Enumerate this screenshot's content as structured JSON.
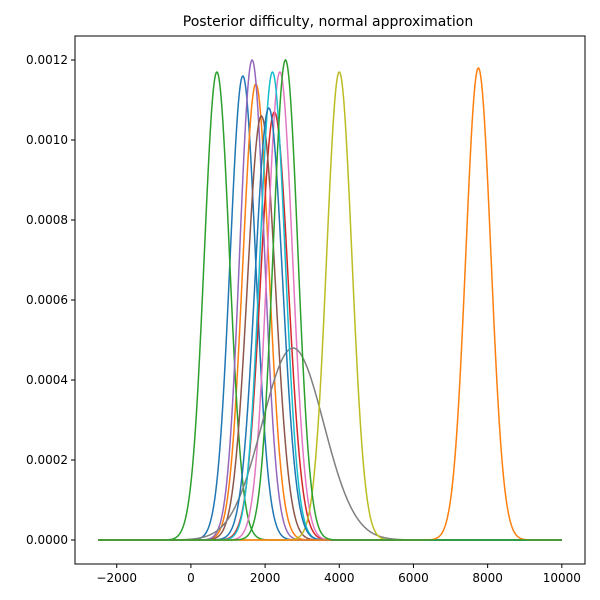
{
  "chart_data": {
    "type": "line",
    "title": "Posterior difficulty, normal approximation",
    "xlabel": "",
    "ylabel": "",
    "xlim": [
      -3125,
      10625
    ],
    "ylim": [
      -6e-05,
      0.00126
    ],
    "x_range": [
      -2500,
      10000
    ],
    "xticks": [
      -2000,
      0,
      2000,
      4000,
      6000,
      8000,
      10000
    ],
    "xtick_labels": [
      "−2000",
      "0",
      "2000",
      "4000",
      "6000",
      "8000",
      "10000"
    ],
    "yticks": [
      0.0,
      0.0002,
      0.0004,
      0.0006,
      0.0008,
      0.001,
      0.0012
    ],
    "ytick_labels": [
      "0.0000",
      "0.0002",
      "0.0004",
      "0.0006",
      "0.0008",
      "0.0010",
      "0.0012"
    ],
    "grid": false,
    "legend": "none",
    "series": [
      {
        "mean": 1400,
        "peak": 0.00116,
        "color": "#1f77b4"
      },
      {
        "mean": 1750,
        "peak": 0.00114,
        "color": "#ff7f0e"
      },
      {
        "mean": 700,
        "peak": 0.00117,
        "color": "#2ca02c"
      },
      {
        "mean": 2250,
        "peak": 0.00107,
        "color": "#d62728"
      },
      {
        "mean": 1650,
        "peak": 0.0012,
        "color": "#9467bd"
      },
      {
        "mean": 1900,
        "peak": 0.00106,
        "color": "#8c564b"
      },
      {
        "mean": 2400,
        "peak": 0.00117,
        "color": "#e377c2"
      },
      {
        "mean": 2750,
        "peak": 0.00048,
        "color": "#7f7f7f"
      },
      {
        "mean": 4000,
        "peak": 0.00117,
        "color": "#bcbd22"
      },
      {
        "mean": 2200,
        "peak": 0.00117,
        "color": "#17becf"
      },
      {
        "mean": 2100,
        "peak": 0.00108,
        "color": "#1f77b4"
      },
      {
        "mean": 7750,
        "peak": 0.00118,
        "color": "#ff7f0e"
      },
      {
        "mean": 2550,
        "peak": 0.0012,
        "color": "#2ca02c"
      }
    ]
  }
}
